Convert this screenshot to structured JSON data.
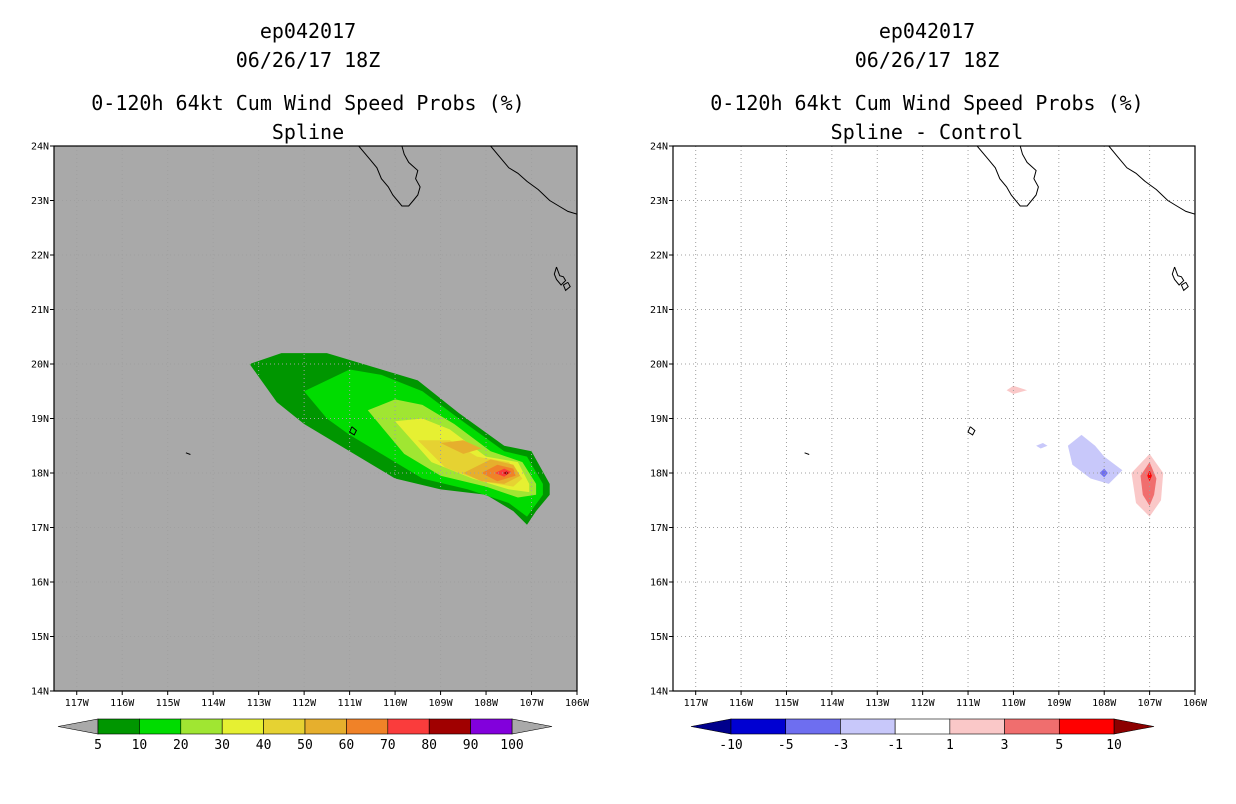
{
  "chart_data": [
    {
      "type": "heatmap",
      "title_lines": [
        "ep042017",
        "06/26/17 18Z",
        "0-120h 64kt Cum Wind Speed Probs (%)",
        "Spline"
      ],
      "xlim": [
        -117.5,
        -106
      ],
      "ylim": [
        14,
        24
      ],
      "x_ticks": [
        -117,
        -116,
        -115,
        -114,
        -113,
        -112,
        -111,
        -110,
        -109,
        -108,
        -107,
        -106
      ],
      "x_tick_labels": [
        "117W",
        "116W",
        "115W",
        "114W",
        "113W",
        "112W",
        "111W",
        "110W",
        "109W",
        "108W",
        "107W",
        "106W"
      ],
      "y_ticks": [
        14,
        15,
        16,
        17,
        18,
        19,
        20,
        21,
        22,
        23,
        24
      ],
      "y_tick_labels": [
        "14N",
        "15N",
        "16N",
        "17N",
        "18N",
        "19N",
        "20N",
        "21N",
        "22N",
        "23N",
        "24N"
      ],
      "background_color": "#a9a9a9",
      "grid": true,
      "colorbar": {
        "labels": [
          "5",
          "10",
          "20",
          "30",
          "40",
          "50",
          "60",
          "70",
          "80",
          "90",
          "100"
        ],
        "colors": [
          "#009600",
          "#00dc00",
          "#a0e632",
          "#e6f032",
          "#e6d232",
          "#e6af2d",
          "#f08228",
          "#fa3c3c",
          "#a00000",
          "#8200dc"
        ],
        "end_color": "#a9a9a9"
      },
      "contours": [
        {
          "level": 5,
          "color": "#009600",
          "points": [
            [
              -113.2,
              20.0
            ],
            [
              -112.5,
              20.2
            ],
            [
              -111.5,
              20.2
            ],
            [
              -110.5,
              19.95
            ],
            [
              -109.5,
              19.7
            ],
            [
              -108.6,
              19.1
            ],
            [
              -107.6,
              18.5
            ],
            [
              -107.0,
              18.4
            ],
            [
              -106.6,
              17.8
            ],
            [
              -106.6,
              17.6
            ],
            [
              -106.9,
              17.3
            ],
            [
              -107.1,
              17.05
            ],
            [
              -107.4,
              17.3
            ],
            [
              -108.0,
              17.6
            ],
            [
              -109.0,
              17.7
            ],
            [
              -110.0,
              17.9
            ],
            [
              -111.0,
              18.4
            ],
            [
              -112.0,
              18.9
            ],
            [
              -112.6,
              19.3
            ],
            [
              -113.2,
              20.0
            ]
          ]
        },
        {
          "level": 10,
          "color": "#00dc00",
          "points": [
            [
              -112.0,
              19.5
            ],
            [
              -111.0,
              19.9
            ],
            [
              -110.3,
              19.8
            ],
            [
              -109.4,
              19.5
            ],
            [
              -108.6,
              19.0
            ],
            [
              -107.6,
              18.4
            ],
            [
              -107.1,
              18.3
            ],
            [
              -106.75,
              17.8
            ],
            [
              -106.75,
              17.6
            ],
            [
              -107.1,
              17.2
            ],
            [
              -107.5,
              17.45
            ],
            [
              -108.4,
              17.7
            ],
            [
              -109.4,
              17.9
            ],
            [
              -110.2,
              18.3
            ],
            [
              -111.0,
              18.7
            ],
            [
              -111.5,
              19.0
            ],
            [
              -112.0,
              19.5
            ]
          ]
        },
        {
          "level": 20,
          "color": "#a0e632",
          "points": [
            [
              -110.6,
              19.15
            ],
            [
              -110.0,
              19.35
            ],
            [
              -109.4,
              19.25
            ],
            [
              -108.7,
              18.9
            ],
            [
              -107.9,
              18.4
            ],
            [
              -107.2,
              18.2
            ],
            [
              -106.9,
              17.8
            ],
            [
              -106.9,
              17.6
            ],
            [
              -107.3,
              17.55
            ],
            [
              -108.0,
              17.75
            ],
            [
              -109.0,
              17.95
            ],
            [
              -109.8,
              18.35
            ],
            [
              -110.6,
              19.15
            ]
          ]
        },
        {
          "level": 30,
          "color": "#e6f032",
          "points": [
            [
              -110.0,
              18.95
            ],
            [
              -109.4,
              19.0
            ],
            [
              -108.8,
              18.8
            ],
            [
              -108.0,
              18.3
            ],
            [
              -107.3,
              18.2
            ],
            [
              -107.05,
              17.8
            ],
            [
              -107.05,
              17.65
            ],
            [
              -107.5,
              17.7
            ],
            [
              -108.3,
              17.9
            ],
            [
              -109.2,
              18.2
            ],
            [
              -110.0,
              18.95
            ]
          ]
        },
        {
          "level": 40,
          "color": "#e6d232",
          "points": [
            [
              -109.5,
              18.6
            ],
            [
              -108.8,
              18.6
            ],
            [
              -108.2,
              18.3
            ],
            [
              -107.5,
              18.2
            ],
            [
              -107.2,
              17.9
            ],
            [
              -107.4,
              17.75
            ],
            [
              -108.1,
              17.85
            ],
            [
              -108.9,
              18.1
            ],
            [
              -109.5,
              18.6
            ]
          ]
        },
        {
          "level": 50,
          "color": "#e6af2d",
          "points": [
            [
              -109.0,
              18.55
            ],
            [
              -108.5,
              18.6
            ],
            [
              -108.1,
              18.45
            ],
            [
              -108.5,
              18.35
            ],
            [
              -109.0,
              18.55
            ]
          ]
        },
        {
          "level": 50,
          "color": "#e6af2d",
          "points": [
            [
              -108.5,
              18.0
            ],
            [
              -107.9,
              18.25
            ],
            [
              -107.4,
              18.15
            ],
            [
              -107.25,
              17.95
            ],
            [
              -107.6,
              17.8
            ],
            [
              -108.1,
              17.85
            ],
            [
              -108.5,
              18.0
            ]
          ]
        },
        {
          "level": 60,
          "color": "#f08228",
          "points": [
            [
              -108.1,
              18.0
            ],
            [
              -107.75,
              18.15
            ],
            [
              -107.4,
              18.08
            ],
            [
              -107.35,
              17.95
            ],
            [
              -107.75,
              17.85
            ],
            [
              -108.1,
              18.0
            ]
          ]
        },
        {
          "level": 70,
          "color": "#fa3c3c",
          "points": [
            [
              -107.8,
              18.0
            ],
            [
              -107.6,
              18.08
            ],
            [
              -107.45,
              18.02
            ],
            [
              -107.6,
              17.93
            ],
            [
              -107.8,
              18.0
            ]
          ]
        },
        {
          "level": 80,
          "color": "#a00000",
          "points": [
            [
              -107.62,
              18.0
            ],
            [
              -107.55,
              18.03
            ],
            [
              -107.5,
              18.0
            ],
            [
              -107.55,
              17.97
            ],
            [
              -107.62,
              18.0
            ]
          ]
        }
      ]
    },
    {
      "type": "heatmap",
      "title_lines": [
        "ep042017",
        "06/26/17 18Z",
        "0-120h 64kt Cum Wind Speed Probs (%)",
        "Spline - Control"
      ],
      "xlim": [
        -117.5,
        -106
      ],
      "ylim": [
        14,
        24
      ],
      "x_ticks": [
        -117,
        -116,
        -115,
        -114,
        -113,
        -112,
        -111,
        -110,
        -109,
        -108,
        -107,
        -106
      ],
      "x_tick_labels": [
        "117W",
        "116W",
        "115W",
        "114W",
        "113W",
        "112W",
        "111W",
        "110W",
        "109W",
        "108W",
        "107W",
        "106W"
      ],
      "y_ticks": [
        14,
        15,
        16,
        17,
        18,
        19,
        20,
        21,
        22,
        23,
        24
      ],
      "y_tick_labels": [
        "14N",
        "15N",
        "16N",
        "17N",
        "18N",
        "19N",
        "20N",
        "21N",
        "22N",
        "23N",
        "24N"
      ],
      "background_color": "#ffffff",
      "grid": true,
      "colorbar": {
        "labels": [
          "-10",
          "-5",
          "-3",
          "-1",
          "1",
          "3",
          "5",
          "10"
        ],
        "colors": [
          "#0000d2",
          "#6e6ef0",
          "#c8c8fa",
          "#ffffff",
          "#fac8c8",
          "#f06e6e",
          "#ff0000"
        ],
        "left_end_color": "#00008c",
        "right_end_color": "#8c0000"
      },
      "contours": [
        {
          "level": 1,
          "color": "#fac8c8",
          "points": [
            [
              -110.15,
              19.52
            ],
            [
              -110.0,
              19.6
            ],
            [
              -109.7,
              19.52
            ],
            [
              -110.0,
              19.45
            ],
            [
              -110.15,
              19.52
            ]
          ]
        },
        {
          "level": -1,
          "color": "#c8c8fa",
          "points": [
            [
              -109.5,
              18.5
            ],
            [
              -109.35,
              18.55
            ],
            [
              -109.25,
              18.5
            ],
            [
              -109.4,
              18.45
            ],
            [
              -109.5,
              18.5
            ]
          ]
        },
        {
          "level": -1,
          "color": "#c8c8fa",
          "points": [
            [
              -108.8,
              18.5
            ],
            [
              -108.5,
              18.7
            ],
            [
              -108.2,
              18.5
            ],
            [
              -108.0,
              18.3
            ],
            [
              -107.6,
              18.05
            ],
            [
              -107.9,
              17.8
            ],
            [
              -108.3,
              17.9
            ],
            [
              -108.7,
              18.15
            ],
            [
              -108.8,
              18.5
            ]
          ]
        },
        {
          "level": -3,
          "color": "#6e6ef0",
          "points": [
            [
              -108.1,
              18.0
            ],
            [
              -108.0,
              18.08
            ],
            [
              -107.92,
              18.0
            ],
            [
              -108.0,
              17.92
            ],
            [
              -108.1,
              18.0
            ]
          ]
        },
        {
          "level": 1,
          "color": "#fac8c8",
          "points": [
            [
              -107.0,
              18.35
            ],
            [
              -106.7,
              18.0
            ],
            [
              -106.75,
              17.5
            ],
            [
              -107.0,
              17.2
            ],
            [
              -107.3,
              17.45
            ],
            [
              -107.4,
              18.0
            ],
            [
              -107.0,
              18.35
            ]
          ]
        },
        {
          "level": 3,
          "color": "#f06e6e",
          "points": [
            [
              -107.0,
              18.2
            ],
            [
              -106.85,
              17.9
            ],
            [
              -106.9,
              17.6
            ],
            [
              -107.0,
              17.4
            ],
            [
              -107.15,
              17.6
            ],
            [
              -107.2,
              17.95
            ],
            [
              -107.0,
              18.2
            ]
          ]
        },
        {
          "level": 5,
          "color": "#ff0000",
          "points": [
            [
              -107.0,
              18.05
            ],
            [
              -106.95,
              17.95
            ],
            [
              -107.0,
              17.85
            ],
            [
              -107.05,
              17.95
            ],
            [
              -107.0,
              18.05
            ]
          ]
        }
      ]
    }
  ],
  "coastline": {
    "baja": [
      [
        -110.8,
        24.0
      ],
      [
        -110.55,
        23.75
      ],
      [
        -110.4,
        23.6
      ],
      [
        -110.3,
        23.4
      ],
      [
        -110.15,
        23.25
      ],
      [
        -110.05,
        23.1
      ],
      [
        -109.85,
        22.9
      ],
      [
        -109.7,
        22.9
      ],
      [
        -109.6,
        23.0
      ],
      [
        -109.5,
        23.1
      ],
      [
        -109.45,
        23.25
      ],
      [
        -109.55,
        23.4
      ],
      [
        -109.5,
        23.55
      ],
      [
        -109.7,
        23.7
      ],
      [
        -109.8,
        23.85
      ],
      [
        -109.85,
        24.0
      ]
    ],
    "mainland": [
      [
        -107.9,
        24.0
      ],
      [
        -107.7,
        23.8
      ],
      [
        -107.5,
        23.6
      ],
      [
        -107.3,
        23.5
      ],
      [
        -107.1,
        23.35
      ],
      [
        -106.85,
        23.2
      ],
      [
        -106.6,
        23.0
      ],
      [
        -106.4,
        22.9
      ],
      [
        -106.2,
        22.8
      ],
      [
        -106.0,
        22.75
      ]
    ],
    "islands": [
      [
        [
          -106.45,
          21.78
        ],
        [
          -106.38,
          21.62
        ],
        [
          -106.3,
          21.6
        ],
        [
          -106.25,
          21.53
        ],
        [
          -106.35,
          21.45
        ],
        [
          -106.45,
          21.55
        ],
        [
          -106.5,
          21.65
        ],
        [
          -106.45,
          21.78
        ]
      ],
      [
        [
          -106.2,
          21.5
        ],
        [
          -106.15,
          21.42
        ],
        [
          -106.25,
          21.35
        ],
        [
          -106.3,
          21.45
        ],
        [
          -106.2,
          21.5
        ]
      ],
      [
        [
          -110.95,
          18.85
        ],
        [
          -110.85,
          18.78
        ],
        [
          -110.9,
          18.7
        ],
        [
          -111.0,
          18.75
        ],
        [
          -110.95,
          18.85
        ]
      ],
      [
        [
          -114.6,
          18.37
        ],
        [
          -114.5,
          18.34
        ]
      ]
    ]
  }
}
